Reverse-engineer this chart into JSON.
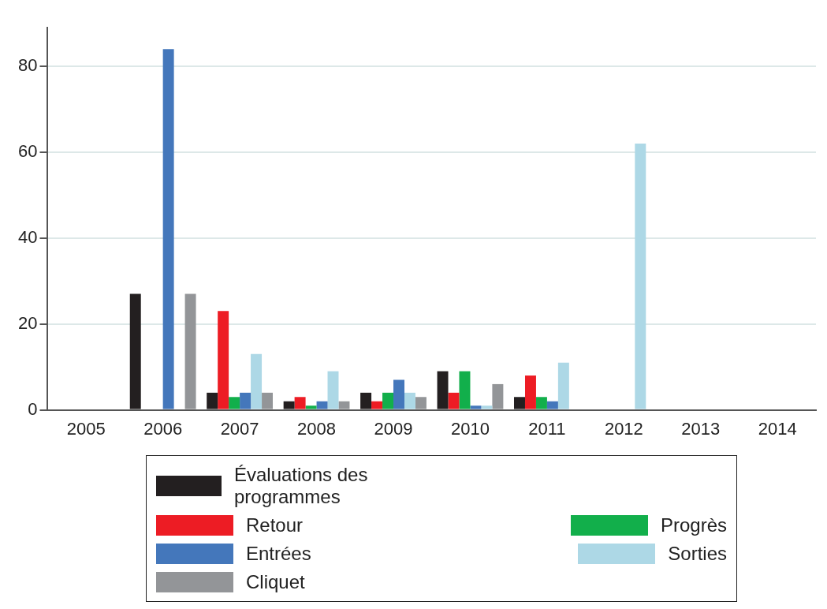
{
  "chart_data": {
    "type": "bar",
    "categories": [
      "2005",
      "2006",
      "2007",
      "2008",
      "2009",
      "2010",
      "2011",
      "2012",
      "2013",
      "2014"
    ],
    "series": [
      {
        "name": "Évaluations des programmes",
        "color": "#231f20",
        "values": [
          0,
          27,
          4,
          2,
          4,
          9,
          3,
          0,
          0,
          0
        ]
      },
      {
        "name": "Retour",
        "color": "#ed1c24",
        "values": [
          0,
          0,
          23,
          3,
          2,
          4,
          8,
          0,
          0,
          0
        ]
      },
      {
        "name": "Progrès",
        "color": "#12af4b",
        "values": [
          0,
          0,
          3,
          1,
          4,
          9,
          3,
          0,
          0,
          0
        ]
      },
      {
        "name": "Entrées",
        "color": "#4477bb",
        "values": [
          0,
          84,
          4,
          2,
          7,
          1,
          2,
          0,
          0,
          0
        ]
      },
      {
        "name": "Sorties",
        "color": "#add8e6",
        "values": [
          0,
          0,
          13,
          9,
          4,
          1,
          11,
          62,
          0,
          0
        ]
      },
      {
        "name": "Cliquet",
        "color": "#939598",
        "values": [
          0,
          27,
          4,
          2,
          3,
          6,
          0,
          0,
          0,
          0
        ]
      }
    ],
    "ylim": [
      0,
      89
    ],
    "yticks": [
      0,
      20,
      40,
      60,
      80
    ],
    "grid": "y",
    "legend": "bottom"
  }
}
